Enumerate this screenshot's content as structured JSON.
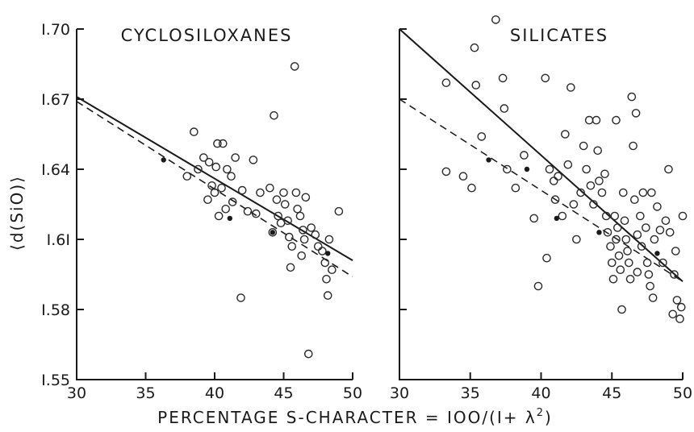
{
  "chart_data": {
    "type": "scatter",
    "ylabel": "⟨d(SiO)⟩",
    "xlabel": "PERCENTAGE S-CHARACTER = 100/(1+ λ²)",
    "xlabel_text": "PERCENTAGE S-CHARACTER = IOO/(I+ λ",
    "xlabel_exponent": "2",
    "xlabel_close": ")",
    "ylim": [
      1.55,
      1.7
    ],
    "y_ticks": [
      1.55,
      1.58,
      1.61,
      1.64,
      1.67,
      1.7
    ],
    "y_tick_labels": [
      "I.55",
      "I.58",
      "I.6I",
      "I.64",
      "I.67",
      "I.70"
    ],
    "grid": false,
    "panels": [
      {
        "title": "CYCLOSILOXANES",
        "xlim": [
          30,
          50
        ],
        "x_ticks": [
          30,
          35,
          40,
          45,
          50
        ],
        "x_tick_labels": [
          "30",
          "35",
          "40",
          "45",
          "50"
        ],
        "open_points": [
          [
            38.5,
            1.656
          ],
          [
            38.8,
            1.64
          ],
          [
            39.2,
            1.645
          ],
          [
            39.6,
            1.643
          ],
          [
            38.0,
            1.637
          ],
          [
            39.5,
            1.627
          ],
          [
            39.8,
            1.633
          ],
          [
            40.0,
            1.63
          ],
          [
            40.1,
            1.641
          ],
          [
            40.2,
            1.651
          ],
          [
            40.6,
            1.651
          ],
          [
            40.5,
            1.632
          ],
          [
            40.3,
            1.62
          ],
          [
            40.8,
            1.623
          ],
          [
            40.9,
            1.64
          ],
          [
            41.2,
            1.637
          ],
          [
            41.5,
            1.645
          ],
          [
            41.3,
            1.626
          ],
          [
            42.0,
            1.631
          ],
          [
            42.4,
            1.622
          ],
          [
            42.8,
            1.644
          ],
          [
            43.0,
            1.621
          ],
          [
            43.3,
            1.63
          ],
          [
            41.9,
            1.585
          ],
          [
            44.0,
            1.632
          ],
          [
            44.3,
            1.663
          ],
          [
            44.5,
            1.627
          ],
          [
            44.6,
            1.62
          ],
          [
            44.8,
            1.617
          ],
          [
            44.2,
            1.613
          ],
          [
            45.0,
            1.63
          ],
          [
            45.1,
            1.625
          ],
          [
            45.3,
            1.618
          ],
          [
            45.4,
            1.611
          ],
          [
            45.6,
            1.607
          ],
          [
            45.8,
            1.684
          ],
          [
            45.5,
            1.598
          ],
          [
            45.9,
            1.63
          ],
          [
            46.0,
            1.623
          ],
          [
            46.2,
            1.62
          ],
          [
            46.4,
            1.614
          ],
          [
            46.5,
            1.61
          ],
          [
            46.3,
            1.603
          ],
          [
            46.6,
            1.628
          ],
          [
            46.8,
            1.561
          ],
          [
            47.0,
            1.615
          ],
          [
            47.3,
            1.612
          ],
          [
            47.5,
            1.607
          ],
          [
            47.8,
            1.605
          ],
          [
            48.0,
            1.6
          ],
          [
            48.1,
            1.593
          ],
          [
            48.2,
            1.586
          ],
          [
            48.3,
            1.61
          ],
          [
            49.0,
            1.622
          ],
          [
            48.5,
            1.597
          ]
        ],
        "filled_points": [
          [
            36.3,
            1.644
          ],
          [
            41.1,
            1.619
          ],
          [
            44.2,
            1.613
          ],
          [
            48.2,
            1.604
          ]
        ],
        "fit_solid": {
          "x": [
            30,
            50
          ],
          "y": [
            1.671,
            1.601
          ]
        },
        "fit_dashed": {
          "x": [
            30,
            50
          ],
          "y": [
            1.669,
            1.594
          ]
        }
      },
      {
        "title": "SILICATES",
        "xlim": [
          30,
          50
        ],
        "x_ticks": [
          30,
          35,
          40,
          45,
          50
        ],
        "x_tick_labels": [
          "30",
          "35",
          "40",
          "45",
          "50"
        ],
        "open_points": [
          [
            33.3,
            1.677
          ],
          [
            33.3,
            1.639
          ],
          [
            34.5,
            1.637
          ],
          [
            35.1,
            1.632
          ],
          [
            35.3,
            1.692
          ],
          [
            35.4,
            1.676
          ],
          [
            35.8,
            1.654
          ],
          [
            36.8,
            1.704
          ],
          [
            37.3,
            1.679
          ],
          [
            37.4,
            1.666
          ],
          [
            37.6,
            1.64
          ],
          [
            38.2,
            1.632
          ],
          [
            38.8,
            1.646
          ],
          [
            39.5,
            1.619
          ],
          [
            39.8,
            1.59
          ],
          [
            40.3,
            1.679
          ],
          [
            40.4,
            1.602
          ],
          [
            40.6,
            1.64
          ],
          [
            40.9,
            1.635
          ],
          [
            41.0,
            1.627
          ],
          [
            41.2,
            1.637
          ],
          [
            41.5,
            1.62
          ],
          [
            41.7,
            1.655
          ],
          [
            41.9,
            1.642
          ],
          [
            42.1,
            1.675
          ],
          [
            42.3,
            1.625
          ],
          [
            42.5,
            1.61
          ],
          [
            42.8,
            1.63
          ],
          [
            43.0,
            1.65
          ],
          [
            43.2,
            1.64
          ],
          [
            43.4,
            1.661
          ],
          [
            43.5,
            1.633
          ],
          [
            43.7,
            1.625
          ],
          [
            43.9,
            1.661
          ],
          [
            44.0,
            1.648
          ],
          [
            44.1,
            1.635
          ],
          [
            44.3,
            1.63
          ],
          [
            44.5,
            1.638
          ],
          [
            44.6,
            1.62
          ],
          [
            44.7,
            1.613
          ],
          [
            44.9,
            1.607
          ],
          [
            45.0,
            1.6
          ],
          [
            45.1,
            1.593
          ],
          [
            45.2,
            1.62
          ],
          [
            45.3,
            1.661
          ],
          [
            45.4,
            1.615
          ],
          [
            45.5,
            1.603
          ],
          [
            45.6,
            1.597
          ],
          [
            45.7,
            1.58
          ],
          [
            45.8,
            1.63
          ],
          [
            45.9,
            1.618
          ],
          [
            46.0,
            1.61
          ],
          [
            46.1,
            1.605
          ],
          [
            46.2,
            1.6
          ],
          [
            46.3,
            1.593
          ],
          [
            46.4,
            1.671
          ],
          [
            46.5,
            1.65
          ],
          [
            46.6,
            1.627
          ],
          [
            46.7,
            1.664
          ],
          [
            46.8,
            1.612
          ],
          [
            47.0,
            1.62
          ],
          [
            47.1,
            1.607
          ],
          [
            47.2,
            1.63
          ],
          [
            47.4,
            1.615
          ],
          [
            47.5,
            1.6
          ],
          [
            47.6,
            1.595
          ],
          [
            47.7,
            1.59
          ],
          [
            47.8,
            1.63
          ],
          [
            47.9,
            1.585
          ],
          [
            48.0,
            1.61
          ],
          [
            48.2,
            1.624
          ],
          [
            48.4,
            1.614
          ],
          [
            48.6,
            1.6
          ],
          [
            48.8,
            1.618
          ],
          [
            49.0,
            1.64
          ],
          [
            49.1,
            1.613
          ],
          [
            49.3,
            1.578
          ],
          [
            49.4,
            1.595
          ],
          [
            49.5,
            1.605
          ],
          [
            49.6,
            1.584
          ],
          [
            49.8,
            1.576
          ],
          [
            49.9,
            1.581
          ],
          [
            50.0,
            1.62
          ],
          [
            45.3,
            1.61
          ],
          [
            46.8,
            1.596
          ]
        ],
        "filled_points": [
          [
            36.3,
            1.644
          ],
          [
            39.0,
            1.64
          ],
          [
            41.1,
            1.619
          ],
          [
            44.1,
            1.613
          ],
          [
            48.2,
            1.604
          ]
        ],
        "fit_solid": {
          "x": [
            30,
            50
          ],
          "y": [
            1.7,
            1.592
          ]
        },
        "fit_dashed": {
          "x": [
            30,
            50
          ],
          "y": [
            1.67,
            1.592
          ]
        }
      }
    ]
  }
}
